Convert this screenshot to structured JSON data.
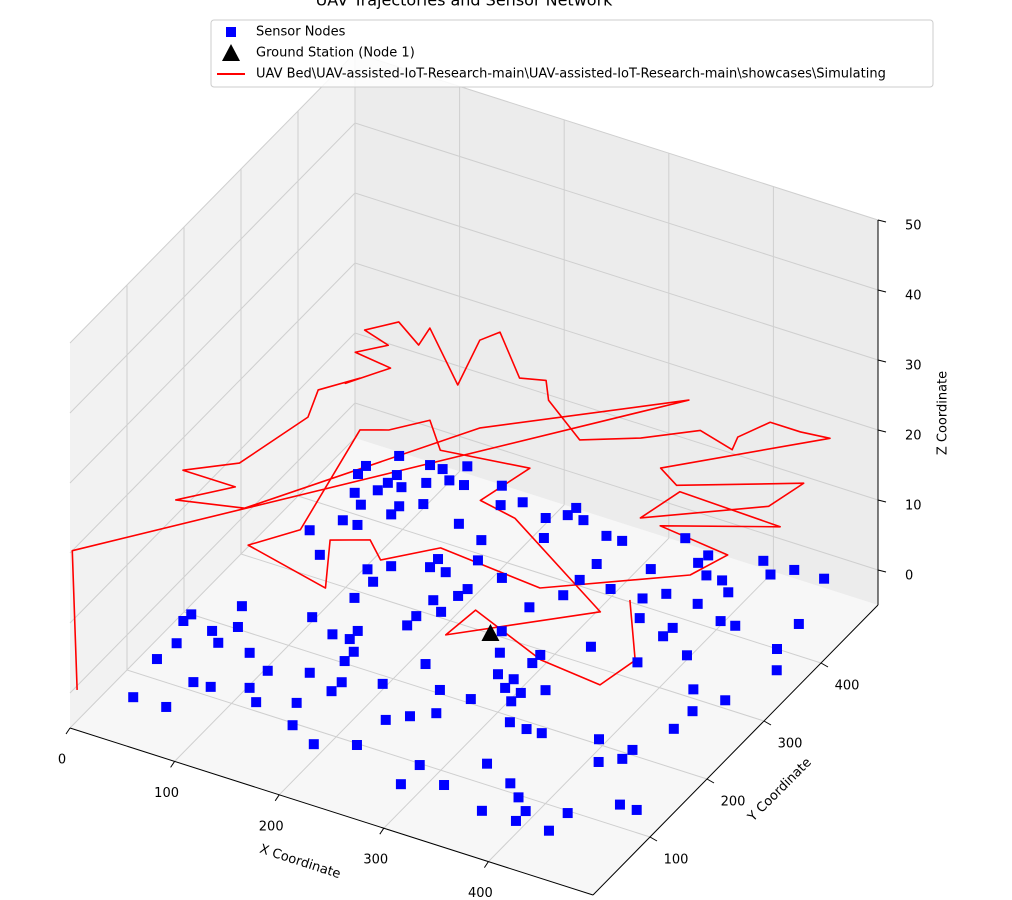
{
  "chart_data": {
    "type": "scatter3d",
    "title": "UAV Trajectories and Sensor Network",
    "xlabel": "X Coordinate",
    "ylabel": "Y Coordinate",
    "zlabel": "Z Coordinate",
    "xlim": [
      0,
      500
    ],
    "ylim": [
      0,
      500
    ],
    "zlim": [
      -5,
      50
    ],
    "xticks": [
      0,
      100,
      200,
      300,
      400
    ],
    "yticks": [
      100,
      200,
      300,
      400
    ],
    "zticks": [
      0,
      10,
      20,
      30,
      40,
      50
    ],
    "grid": true,
    "legend": "upper center",
    "series": [
      {
        "name": "Sensor Nodes",
        "type": "scatter",
        "marker": "square",
        "color": "#0000ff",
        "x": [
          49,
          80,
          39,
          42,
          31,
          32,
          82,
          98,
          59,
          72,
          75,
          63,
          102,
          127,
          142,
          128,
          185,
          172,
          160,
          122,
          214,
          189,
          149,
          190,
          177,
          165,
          177,
          165,
          246,
          221,
          249,
          306,
          264,
          306,
          238,
          281,
          267,
          338,
          296,
          384,
          354,
          298,
          284,
          270,
          313,
          385,
          341,
          327,
          313,
          416,
          401,
          328,
          416,
          358,
          315,
          315,
          372,
          344,
          447,
          448,
          418,
          434,
          346,
          480,
          449,
          450,
          496,
          391,
          465,
          466,
          451,
          422,
          391,
          392,
          361,
          349,
          363,
          393,
          422,
          436,
          482,
          498,
          483,
          481,
          407,
          394,
          379,
          364,
          366,
          337,
          334,
          319,
          291,
          290,
          289,
          273,
          232,
          202,
          215,
          213,
          212,
          198,
          197,
          197,
          187,
          172,
          172,
          141,
          128,
          139,
          143,
          83,
          58,
          75,
          89,
          77,
          64,
          79,
          81,
          82,
          94,
          106,
          106,
          122,
          109,
          99,
          111,
          124,
          138,
          127,
          162,
          190,
          179,
          166,
          193,
          221,
          234,
          235,
          236,
          250,
          278,
          293,
          53,
          53,
          70,
          410,
          425,
          439,
          467
        ],
        "y": [
          21,
          22,
          81,
          110,
          142,
          154,
          66,
          67,
          141,
          128,
          157,
          186,
          128,
          82,
          66,
          112,
          51,
          82,
          127,
          201,
          35,
          112,
          187,
          128,
          157,
          188,
          173,
          202,
          52,
          143,
          97,
          19,
          112,
          52,
          187,
          127,
          159,
          36,
          160,
          18,
          82,
          204,
          233,
          262,
          189,
          66,
          146,
          174,
          204,
          19,
          51,
          189,
          36,
          144,
          233,
          247,
          145,
          203,
          20,
          51,
          161,
          131,
          279,
          84,
          145,
          161,
          84,
          278,
          206,
          237,
          266,
          308,
          323,
          338,
          337,
          364,
          380,
          380,
          367,
          367,
          265,
          326,
          354,
          396,
          408,
          421,
          421,
          434,
          448,
          461,
          406,
          363,
          390,
          362,
          335,
          305,
          332,
          345,
          303,
          290,
          262,
          274,
          246,
          230,
          316,
          330,
          316,
          273,
          287,
          244,
          301,
          286,
          314,
          341,
          341,
          369,
          382,
          395,
          409,
          423,
          409,
          383,
          369,
          396,
          425,
          450,
          450,
          438,
          438,
          464,
          385,
          373,
          427,
          453,
          440,
          429,
          402,
          442,
          455,
          442,
          431,
          431,
          408,
          422,
          449,
          464,
          449,
          465,
          466
        ],
        "z": [
          0,
          0,
          0,
          0,
          0,
          0,
          0,
          0,
          0,
          0,
          0,
          0,
          0,
          0,
          0,
          0,
          0,
          0,
          0,
          0,
          0,
          0,
          0,
          0,
          0,
          0,
          0,
          0,
          0,
          0,
          0,
          0,
          0,
          0,
          0,
          0,
          0,
          0,
          0,
          0,
          0,
          0,
          0,
          0,
          0,
          0,
          0,
          0,
          0,
          0,
          0,
          0,
          0,
          0,
          0,
          0,
          0,
          0,
          0,
          0,
          0,
          0,
          0,
          0,
          0,
          0,
          0,
          0,
          0,
          0,
          0,
          0,
          0,
          0,
          0,
          0,
          0,
          0,
          0,
          0,
          0,
          0,
          0,
          0,
          0,
          0,
          0,
          0,
          0,
          0,
          0,
          0,
          0,
          0,
          0,
          0,
          0,
          0,
          0,
          0,
          0,
          0,
          0,
          0,
          0,
          0,
          0,
          0,
          0,
          0,
          0,
          0,
          0,
          0,
          0,
          0,
          0,
          0,
          0,
          0,
          0,
          0,
          0,
          0,
          0,
          0,
          0,
          0,
          0,
          0,
          0,
          0,
          0,
          0,
          0,
          0,
          0,
          0,
          0,
          0,
          0,
          0,
          0,
          0,
          0,
          0,
          0,
          0,
          0
        ]
      },
      {
        "name": "Ground Station (Node 1)",
        "type": "scatter",
        "marker": "triangle",
        "color": "#000000",
        "x": [
          263
        ],
        "y": [
          255
        ],
        "z": [
          0
        ]
      },
      {
        "name": "UAV Bed\\UAV-assisted-IoT-Research-main\\UAV-assisted-IoT-Research-main\\showcases\\Simulating",
        "type": "line",
        "color": "#ff0000",
        "x": [
          3,
          0,
          341,
          209,
          95,
          39,
          73,
          23,
          59,
          76,
          64,
          86,
          79,
          101,
          64,
          83,
          55,
          74,
          105,
          101,
          162,
          146,
          155,
          202,
          223,
          239,
          290,
          333,
          371,
          408,
          403,
          416,
          445,
          471,
          369,
          393,
          484,
          475,
          390,
          400,
          498,
          410,
          480,
          467,
          367,
          266,
          231,
          209,
          180,
          211,
          124,
          151,
          123,
          144,
          167,
          196,
          274,
          261,
          299,
          428,
          332,
          336,
          419,
          480,
          488,
          441
        ],
        "y": [
          7,
          4,
          460,
          336,
          132,
          114,
          156,
          156,
          189,
          278,
          318,
          351,
          338,
          377,
          383,
          406,
          416,
          441,
          419,
          446,
          383,
          451,
          470,
          418,
          426,
          401,
          362,
          390,
          425,
          413,
          432,
          465,
          465,
          469,
          359,
          343,
          399,
          354,
          285,
          336,
          332,
          283,
          273,
          231,
          151,
          162,
          121,
          143,
          126,
          61,
          85,
          127,
          283,
          295,
          325,
          290,
          304,
          241,
          232,
          145,
          50,
          95,
          57,
          49,
          96,
          173
        ],
        "z": [
          0,
          20,
          20,
          20,
          20,
          20,
          20,
          20,
          20,
          20,
          20,
          20,
          20,
          20,
          20,
          20,
          20,
          20,
          20,
          20,
          20,
          20,
          20,
          20,
          20,
          20,
          20,
          20,
          20,
          20,
          20,
          20,
          20,
          20,
          20,
          20,
          20,
          20,
          20,
          20,
          20,
          20,
          20,
          20,
          20,
          20,
          20,
          20,
          20,
          20,
          20,
          20,
          20,
          20,
          20,
          20,
          20,
          20,
          20,
          20,
          20,
          20,
          20,
          20,
          20,
          20
        ]
      }
    ]
  }
}
